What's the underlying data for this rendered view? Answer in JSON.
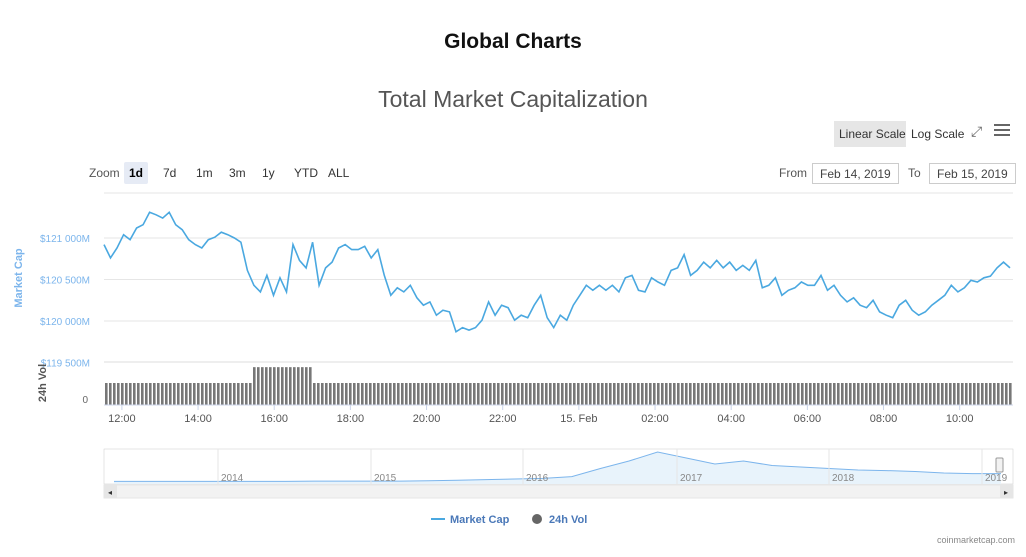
{
  "page": {
    "heading": "Global Charts",
    "credit": "coinmarketcap.com"
  },
  "toolbar": {
    "zoom_label": "Zoom",
    "zoom_options": [
      "1d",
      "7d",
      "1m",
      "3m",
      "1y",
      "YTD",
      "ALL"
    ],
    "selected_zoom": "1d",
    "linear_scale": "Linear Scale",
    "log_scale": "Log Scale",
    "from_label": "From",
    "from_value": "Feb 14, 2019",
    "to_label": "To",
    "to_value": "Feb 15, 2019"
  },
  "colors": {
    "line": "#4aa8e0",
    "volume": "#777777",
    "axis_text": "#7cb5ec"
  },
  "chart_data": {
    "type": "line",
    "title": "Total Market Capitalization",
    "ylabel": "Market Cap",
    "ylabel2": "24h Vol",
    "yticks": [
      "$121 000M",
      "$120 500M",
      "$120 000M",
      "$119 500M"
    ],
    "ytick_values": [
      121000,
      120500,
      120000,
      119500
    ],
    "vol_ticks": [
      "0"
    ],
    "xticks": [
      "12:00",
      "14:00",
      "16:00",
      "18:00",
      "20:00",
      "22:00",
      "15. Feb",
      "02:00",
      "04:00",
      "06:00",
      "08:00",
      "10:00"
    ],
    "x_range_hours": [
      11.53,
      35.4
    ],
    "xtick_hours": [
      12,
      14,
      16,
      18,
      20,
      22,
      24,
      26,
      28,
      30,
      32,
      34
    ],
    "ylim": [
      119500,
      121400
    ],
    "series": [
      {
        "name": "Market Cap",
        "unit": "$M",
        "values": [
          120920,
          120760,
          120880,
          121040,
          120980,
          121120,
          121160,
          121310,
          121280,
          121240,
          121310,
          121160,
          121100,
          120980,
          120920,
          120880,
          120980,
          121010,
          121070,
          121040,
          121000,
          120950,
          120610,
          120430,
          120350,
          120550,
          120310,
          120520,
          120350,
          120920,
          120730,
          120640,
          120950,
          120430,
          120640,
          120710,
          120880,
          120920,
          120860,
          120860,
          120900,
          120760,
          120860,
          120550,
          120310,
          120400,
          120350,
          120430,
          120280,
          120190,
          120230,
          120070,
          120130,
          120110,
          119870,
          119920,
          119890,
          119920,
          120010,
          120230,
          120070,
          120190,
          120160,
          120010,
          120070,
          120040,
          120190,
          120310,
          120040,
          119920,
          120070,
          120010,
          120190,
          120310,
          120430,
          120370,
          120430,
          120370,
          120430,
          120350,
          120520,
          120550,
          120370,
          120350,
          120520,
          120470,
          120430,
          120610,
          120640,
          120800,
          120550,
          120610,
          120710,
          120640,
          120730,
          120640,
          120710,
          120610,
          120670,
          120610,
          120730,
          120400,
          120430,
          120520,
          120310,
          120370,
          120400,
          120470,
          120430,
          120430,
          120550,
          120370,
          120430,
          120310,
          120230,
          120280,
          120190,
          120160,
          120250,
          120110,
          120070,
          120040,
          120190,
          120250,
          120130,
          120070,
          120110,
          120190,
          120250,
          120310,
          120430,
          120350,
          120400,
          120490,
          120470,
          120520,
          120540,
          120640,
          120710,
          120640
        ]
      }
    ],
    "volume": {
      "relative_segments": [
        {
          "from_hour": 11.53,
          "to_hour": 15.42,
          "value": 1.0
        },
        {
          "from_hour": 15.42,
          "to_hour": 16.92,
          "value": 1.72
        },
        {
          "from_hour": 16.92,
          "to_hour": 17.0,
          "value": 1.35
        },
        {
          "from_hour": 17.0,
          "to_hour": 35.4,
          "value": 1.0
        }
      ]
    },
    "legend": [
      {
        "name": "Market Cap",
        "symbol": "line"
      },
      {
        "name": "24h Vol",
        "symbol": "dot"
      }
    ],
    "legend_position": "bottom-center",
    "navigator": {
      "labels": [
        "2014",
        "2015",
        "2016",
        "2017",
        "2018",
        "2019"
      ],
      "values": [
        2,
        2,
        2,
        2,
        2,
        2,
        2,
        3,
        3,
        3,
        3,
        4,
        6,
        8,
        10,
        12,
        18,
        45,
        70,
        100,
        80,
        60,
        70,
        55,
        50,
        45,
        40,
        38,
        35,
        30,
        28,
        28
      ]
    }
  }
}
